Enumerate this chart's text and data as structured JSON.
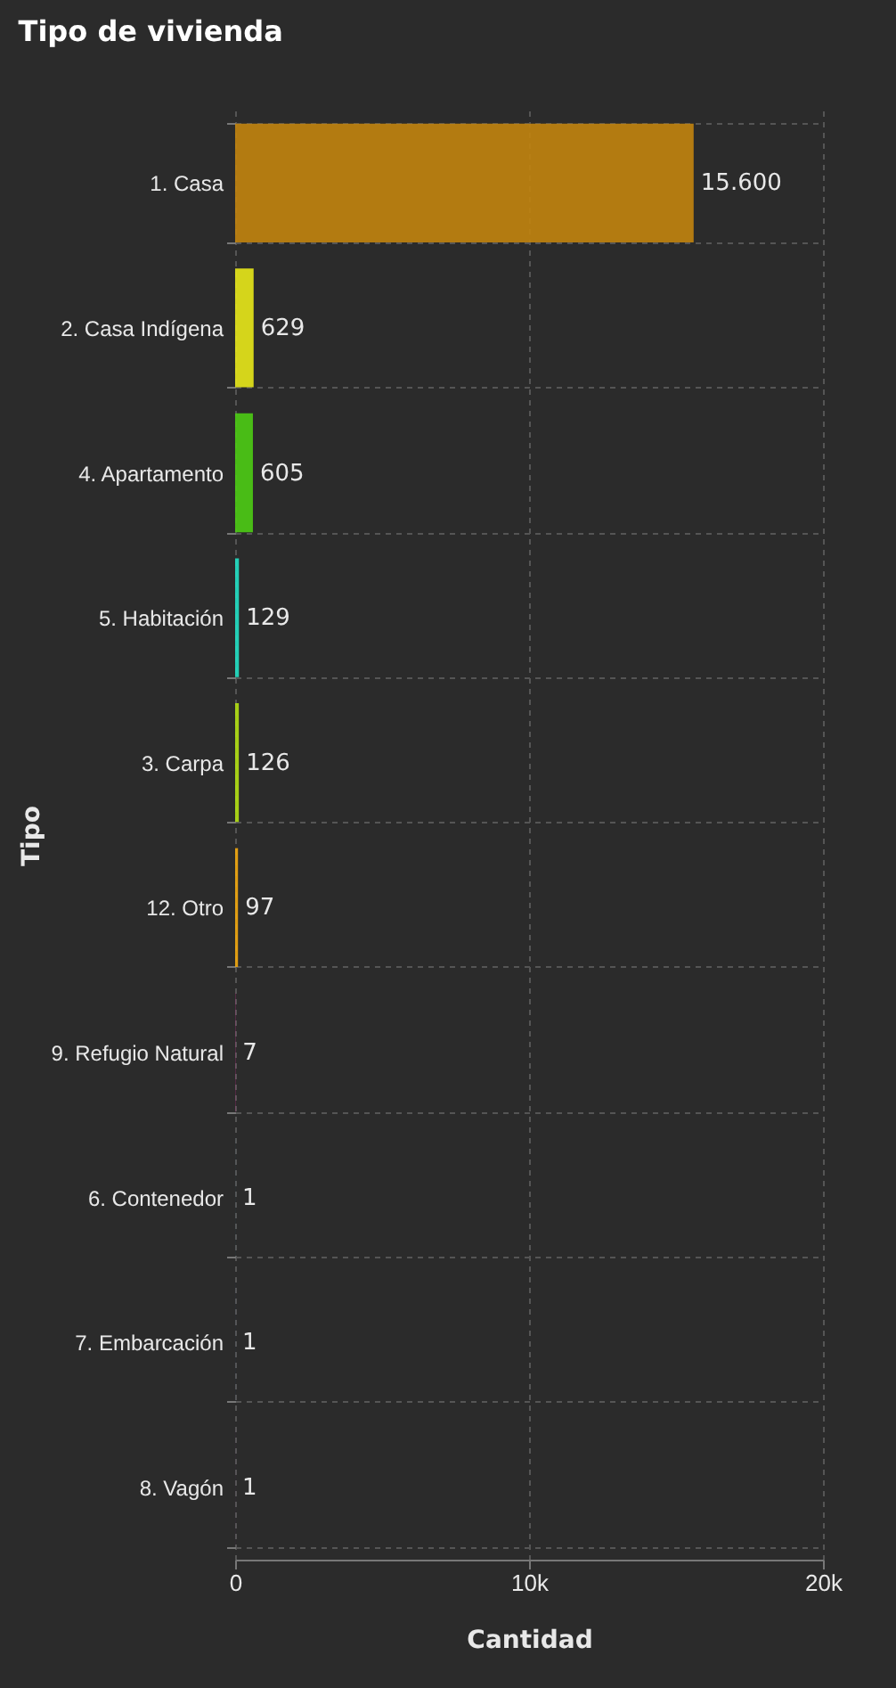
{
  "chart_data": {
    "type": "bar",
    "orientation": "horizontal",
    "title": "Tipo de vivienda",
    "xlabel": "Cantidad",
    "ylabel": "Tipo",
    "categories": [
      "1. Casa",
      "2. Casa Indígena",
      "4. Apartamento",
      "5. Habitación",
      "3. Carpa",
      "12. Otro",
      "9. Refugio Natural",
      "6. Contenedor",
      "7. Embarcación",
      "8. Vagón"
    ],
    "values": [
      15600,
      629,
      605,
      129,
      126,
      97,
      7,
      1,
      1,
      1
    ],
    "value_labels": [
      "15.600",
      "629",
      "605",
      "129",
      "126",
      "97",
      "7",
      "1",
      "1",
      "1"
    ],
    "colors": [
      "#c2840e",
      "#e8e81a",
      "#4ccc14",
      "#22e0c4",
      "#b4e014",
      "#f2a810",
      "#e0289c",
      "#22b4e0",
      "#2870e0",
      "#b024d0"
    ],
    "xlim": [
      0,
      20000
    ],
    "xticks": [
      0,
      {
        "value": 10000,
        "label": "10k"
      },
      {
        "value": 20000,
        "label": "20k"
      }
    ],
    "grid": true
  }
}
